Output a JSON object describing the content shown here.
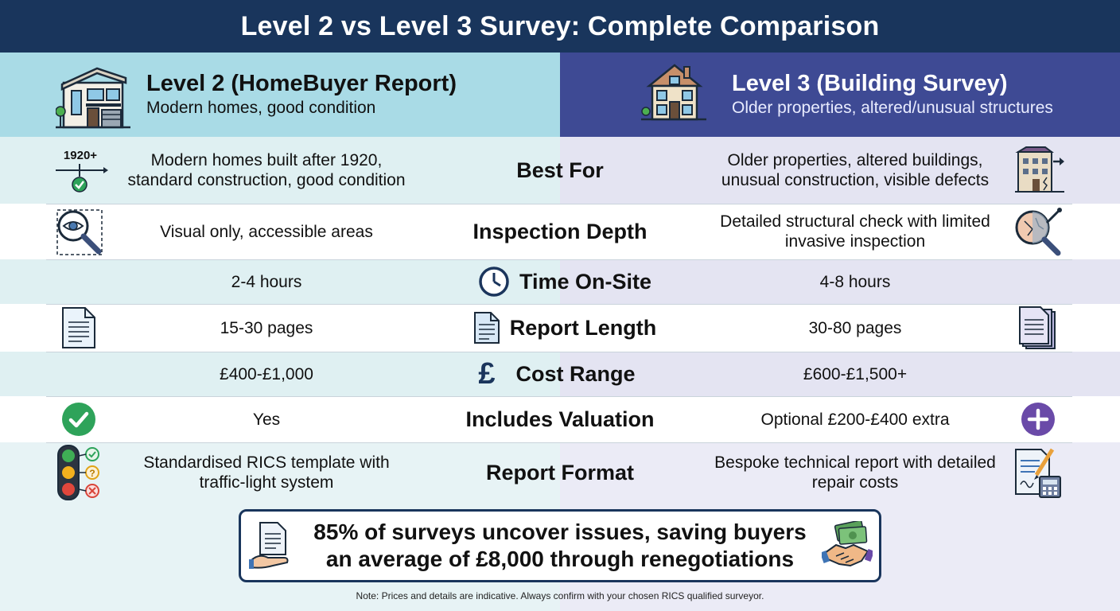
{
  "title": "Level 2 vs Level 3 Survey: Complete Comparison",
  "level2": {
    "heading": "Level 2 (HomeBuyer Report)",
    "subheading": "Modern homes, good condition",
    "icon": "modern-house-icon"
  },
  "level3": {
    "heading": "Level 3 (Building Survey)",
    "subheading": "Older properties, altered/unusual structures",
    "icon": "old-house-icon"
  },
  "rows": [
    {
      "label": "Best For",
      "left": "Modern homes built after 1920, standard construction, good condition",
      "right": "Older properties, altered buildings, unusual construction, visible defects",
      "left_icon_text": "1920+",
      "left_icon": "timeline-check-icon",
      "right_icon": "cracked-building-icon"
    },
    {
      "label": "Inspection Depth",
      "left": "Visual only, accessible areas",
      "right": "Detailed structural check with limited invasive inspection",
      "left_icon": "eye-magnifier-icon",
      "right_icon": "wall-magnifier-icon"
    },
    {
      "label": "Time On-Site",
      "left": "2-4 hours",
      "right": "4-8 hours",
      "mid_icon": "clock-icon"
    },
    {
      "label": "Report Length",
      "left": "15-30 pages",
      "right": "30-80 pages",
      "mid_icon": "document-icon",
      "left_icon": "document-icon",
      "right_icon": "document-stack-icon"
    },
    {
      "label": "Cost Range",
      "left": "£400-£1,000",
      "right": "£600-£1,500+",
      "mid_icon_text": "£",
      "mid_icon": "pound-icon"
    },
    {
      "label": "Includes Valuation",
      "left": "Yes",
      "right": "Optional £200-£400 extra",
      "left_icon": "check-circle-icon",
      "right_icon": "plus-circle-icon"
    },
    {
      "label": "Report Format",
      "left": "Standardised RICS template with traffic-light system",
      "right": "Bespoke technical report with detailed repair costs",
      "left_icon": "traffic-light-icon",
      "right_icon": "report-calculator-icon"
    }
  ],
  "callout": {
    "line1": "85% of surveys uncover issues, saving buyers",
    "line2": "an average of £8,000 through renegotiations"
  },
  "note": "Note: Prices and details are indicative. Always confirm with your chosen RICS qualified surveyor.",
  "colors": {
    "title_bg": "#19355c",
    "level2_header": "#a9dbe6",
    "level3_header": "#3e4a94",
    "check_green": "#2ea35a",
    "plus_purple": "#6a4aa8"
  }
}
